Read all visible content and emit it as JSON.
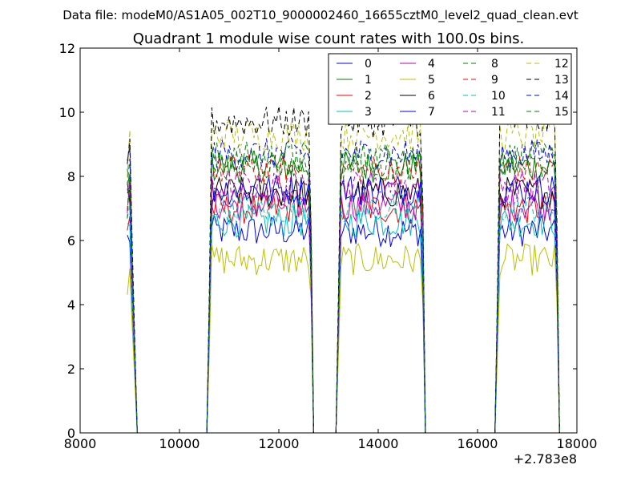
{
  "chart_data": {
    "type": "line",
    "suptitle": "Data file: modeM0/AS1A05_002T10_9000002460_16655cztM0_level2_quad_clean.evt",
    "title": "Quadrant 1 module wise count rates with 100.0s bins.",
    "xlabel": "",
    "ylabel": "",
    "x_offset_label": "+2.783e8",
    "xlim": [
      8000,
      18000
    ],
    "ylim": [
      0,
      12
    ],
    "xticks": [
      8000,
      10000,
      12000,
      14000,
      16000,
      18000
    ],
    "yticks": [
      0,
      2,
      4,
      6,
      8,
      10,
      12
    ],
    "legend_location": "top-right",
    "legend_columns": 4,
    "segments": [
      {
        "start": 8950,
        "end": 9150
      },
      {
        "start": 10650,
        "end": 12600
      },
      {
        "start": 13250,
        "end": 14850
      },
      {
        "start": 16450,
        "end": 17550
      }
    ],
    "gap_level": 0,
    "series": [
      {
        "name": "0",
        "color": "#0000ff",
        "dash": "solid",
        "base": 6.3
      },
      {
        "name": "1",
        "color": "#008000",
        "dash": "solid",
        "base": 8.3
      },
      {
        "name": "2",
        "color": "#ff0000",
        "dash": "solid",
        "base": 7.0
      },
      {
        "name": "3",
        "color": "#00bfbf",
        "dash": "solid",
        "base": 6.6
      },
      {
        "name": "4",
        "color": "#bf00bf",
        "dash": "solid",
        "base": 7.1
      },
      {
        "name": "5",
        "color": "#bfbf00",
        "dash": "solid",
        "base": 5.4
      },
      {
        "name": "6",
        "color": "#000000",
        "dash": "solid",
        "base": 7.5
      },
      {
        "name": "7",
        "color": "#0000ff",
        "dash": "solid",
        "base": 7.6
      },
      {
        "name": "8",
        "color": "#008000",
        "dash": "dashed",
        "base": 8.6
      },
      {
        "name": "9",
        "color": "#ff0000",
        "dash": "dashed",
        "base": 8.2
      },
      {
        "name": "10",
        "color": "#00bfbf",
        "dash": "dashed",
        "base": 7.0
      },
      {
        "name": "11",
        "color": "#bf00bf",
        "dash": "dashed",
        "base": 7.7
      },
      {
        "name": "12",
        "color": "#bfbf00",
        "dash": "dashed",
        "base": 9.3
      },
      {
        "name": "13",
        "color": "#000000",
        "dash": "dashed",
        "base": 9.7
      },
      {
        "name": "14",
        "color": "#0000ff",
        "dash": "dashed",
        "base": 8.7
      },
      {
        "name": "15",
        "color": "#008000",
        "dash": "dashed",
        "base": 8.4
      }
    ]
  }
}
